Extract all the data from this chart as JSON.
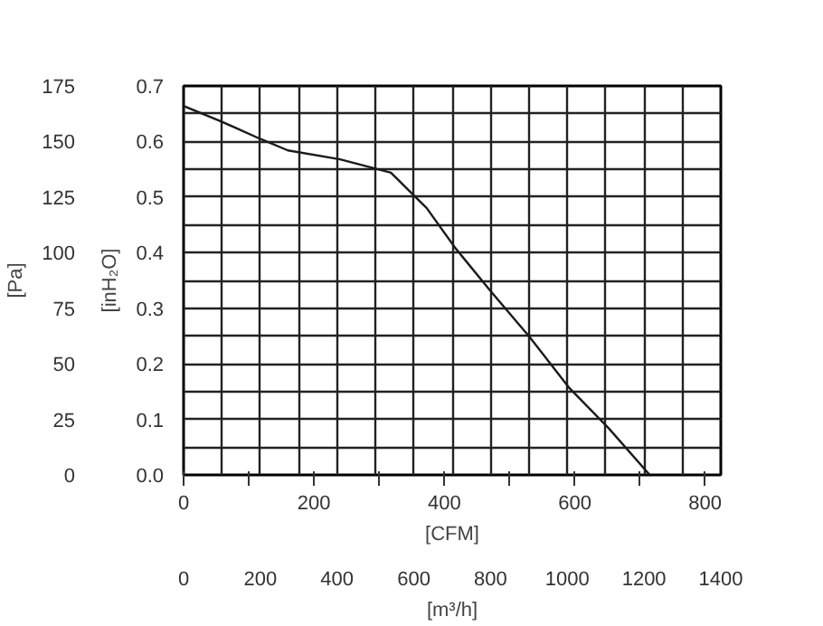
{
  "chart_data": {
    "type": "line",
    "xlabel": "[CFM]",
    "x2label": "[m³/h]",
    "ylabel": "[Pa]",
    "y2label": "[inH₂O]",
    "xlim": [
      0,
      824
    ],
    "xticks": [
      0,
      {
        "value": 100,
        "label": null
      },
      200,
      {
        "value": 300,
        "label": null
      },
      400,
      {
        "value": 500,
        "label": null
      },
      600,
      {
        "value": 700,
        "label": null
      },
      800
    ],
    "x2lim": [
      0,
      1400
    ],
    "x2ticks": [
      0,
      {
        "value": 100,
        "label": null
      },
      200,
      {
        "value": 300,
        "label": null
      },
      400,
      {
        "value": 500,
        "label": null
      },
      600,
      {
        "value": 700,
        "label": null
      },
      800,
      {
        "value": 900,
        "label": null
      },
      1000,
      {
        "value": 1100,
        "label": null
      },
      1200,
      {
        "value": 1300,
        "label": null
      },
      1400
    ],
    "ylim": [
      0,
      175
    ],
    "yticks": [
      0,
      {
        "value": 12.5,
        "label": null
      },
      25,
      {
        "value": 37.5,
        "label": null
      },
      50,
      {
        "value": 62.5,
        "label": null
      },
      75,
      {
        "value": 87.5,
        "label": null
      },
      100,
      {
        "value": 112.5,
        "label": null
      },
      125,
      {
        "value": 137.5,
        "label": null
      },
      150,
      {
        "value": 162.5,
        "label": null
      },
      175
    ],
    "y2lim": [
      0,
      0.7
    ],
    "y2ticks": [
      {
        "value": 0,
        "label": "0.0"
      },
      0.1,
      0.2,
      0.3,
      0.4,
      0.5,
      0.6,
      0.7
    ],
    "grid": true,
    "series": [
      {
        "color": "#1a1a1a",
        "x": [
          0,
          58,
          119,
          160,
          240,
          318,
          373,
          417,
          470,
          531,
          592,
          652,
          715
        ],
        "values": [
          166,
          159,
          151,
          146,
          142,
          136,
          120,
          102,
          83,
          62,
          39,
          21,
          0
        ]
      }
    ]
  }
}
